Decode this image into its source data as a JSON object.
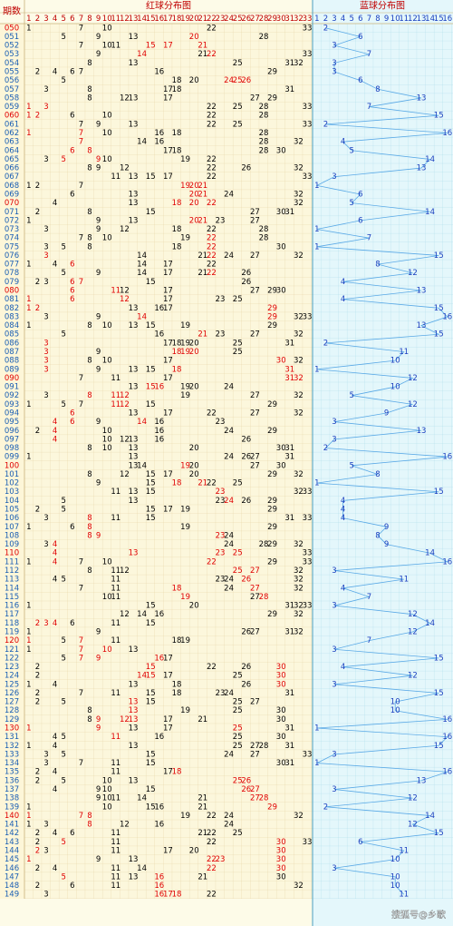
{
  "header": {
    "issue_label": "期数",
    "red_title": "红球分布图",
    "blue_title": "蓝球分布图",
    "red_columns": [
      1,
      2,
      3,
      4,
      5,
      6,
      7,
      8,
      9,
      10,
      11,
      12,
      13,
      14,
      15,
      16,
      17,
      18,
      19,
      20,
      21,
      22,
      23,
      24,
      25,
      26,
      27,
      28,
      29,
      30,
      31,
      32,
      33
    ],
    "blue_columns": [
      1,
      2,
      3,
      4,
      5,
      6,
      7,
      8,
      9,
      10,
      11,
      12,
      13,
      14,
      15,
      16
    ]
  },
  "watermark": "搜狐号@乡歌",
  "rows": [
    {
      "issue": "050",
      "red": [
        1,
        7,
        10,
        22,
        33
      ],
      "hot": [],
      "blue": 2
    },
    {
      "issue": "051",
      "red": [
        5,
        9,
        13,
        20,
        28
      ],
      "hot": [
        20
      ],
      "blue": 6
    },
    {
      "issue": "052",
      "red": [
        7,
        10,
        11,
        15,
        17,
        21
      ],
      "hot": [
        15,
        17,
        21
      ],
      "blue": 3
    },
    {
      "issue": "053",
      "red": [
        9,
        14,
        21,
        22,
        33
      ],
      "hot": [
        14,
        22
      ],
      "blue": 7
    },
    {
      "issue": "054",
      "red": [
        8,
        13,
        25,
        31,
        32
      ],
      "hot": [],
      "blue": 3
    },
    {
      "issue": "055",
      "red": [
        2,
        4,
        6,
        7,
        16,
        29
      ],
      "hot": [],
      "blue": 3
    },
    {
      "issue": "056",
      "red": [
        5,
        18,
        20,
        24,
        25,
        26
      ],
      "hot": [
        24,
        25,
        26
      ],
      "blue": 6
    },
    {
      "issue": "057",
      "red": [
        3,
        8,
        17,
        18,
        31
      ],
      "hot": [],
      "blue": 8
    },
    {
      "issue": "058",
      "red": [
        8,
        12,
        13,
        17,
        27,
        29
      ],
      "hot": [],
      "blue": 13
    },
    {
      "issue": "059",
      "red": [
        1,
        3,
        22,
        25,
        28,
        33
      ],
      "hot": [
        1,
        3
      ],
      "blue": 7
    },
    {
      "issue": "060",
      "red": [
        1,
        2,
        6,
        10,
        22,
        28
      ],
      "hot": [
        1,
        2
      ],
      "blue": 15
    },
    {
      "issue": "061",
      "red": [
        7,
        9,
        13,
        22,
        25,
        33
      ],
      "hot": [],
      "blue": 2
    },
    {
      "issue": "062",
      "red": [
        1,
        7,
        10,
        16,
        18,
        28
      ],
      "hot": [
        1,
        7
      ],
      "blue": 16
    },
    {
      "issue": "063",
      "red": [
        7,
        14,
        16,
        28,
        32
      ],
      "hot": [
        7
      ],
      "blue": 4
    },
    {
      "issue": "064",
      "red": [
        6,
        8,
        17,
        18,
        28,
        30
      ],
      "hot": [
        6,
        8
      ],
      "blue": 5
    },
    {
      "issue": "065",
      "red": [
        3,
        5,
        9,
        10,
        19,
        22
      ],
      "hot": [
        5,
        9
      ],
      "blue": 14
    },
    {
      "issue": "066",
      "red": [
        8,
        9,
        12,
        22,
        26,
        32
      ],
      "hot": [],
      "blue": 13
    },
    {
      "issue": "067",
      "red": [
        11,
        13,
        15,
        17,
        22,
        33
      ],
      "hot": [],
      "blue": 3
    },
    {
      "issue": "068",
      "red": [
        1,
        2,
        7,
        19,
        20,
        21
      ],
      "hot": [
        19,
        20,
        21
      ],
      "blue": 1
    },
    {
      "issue": "069",
      "red": [
        6,
        13,
        20,
        21,
        24,
        32
      ],
      "hot": [
        20,
        21
      ],
      "blue": 6
    },
    {
      "issue": "070",
      "red": [
        4,
        13,
        18,
        20,
        22,
        32
      ],
      "hot": [
        18,
        20,
        22
      ],
      "blue": 5
    },
    {
      "issue": "071",
      "red": [
        2,
        8,
        15,
        27,
        30,
        31
      ],
      "hot": [],
      "blue": 14
    },
    {
      "issue": "072",
      "red": [
        1,
        9,
        13,
        20,
        21,
        23,
        27
      ],
      "hot": [
        20,
        21
      ],
      "blue": 6
    },
    {
      "issue": "073",
      "red": [
        3,
        9,
        12,
        18,
        22,
        28
      ],
      "hot": [],
      "blue": 1
    },
    {
      "issue": "074",
      "red": [
        7,
        8,
        10,
        19,
        22,
        28
      ],
      "hot": [
        22
      ],
      "blue": 7
    },
    {
      "issue": "075",
      "red": [
        3,
        5,
        8,
        18,
        22,
        30
      ],
      "hot": [
        22
      ],
      "blue": 1
    },
    {
      "issue": "076",
      "red": [
        3,
        14,
        21,
        22,
        24,
        27,
        32
      ],
      "hot": [
        3,
        22
      ],
      "blue": 15
    },
    {
      "issue": "077",
      "red": [
        1,
        4,
        6,
        14,
        17,
        22
      ],
      "hot": [
        6
      ],
      "blue": 8
    },
    {
      "issue": "078",
      "red": [
        5,
        9,
        14,
        17,
        21,
        22,
        26
      ],
      "hot": [
        22
      ],
      "blue": 12
    },
    {
      "issue": "079",
      "red": [
        2,
        3,
        6,
        7,
        15,
        26
      ],
      "hot": [
        6,
        7
      ],
      "blue": 4
    },
    {
      "issue": "080",
      "red": [
        6,
        11,
        12,
        17,
        27,
        29,
        30
      ],
      "hot": [
        6,
        11
      ],
      "blue": 13
    },
    {
      "issue": "081",
      "red": [
        1,
        6,
        12,
        17,
        23,
        25
      ],
      "hot": [
        1,
        6,
        12
      ],
      "blue": 4
    },
    {
      "issue": "082",
      "red": [
        1,
        2,
        13,
        16,
        17,
        29
      ],
      "hot": [
        1,
        2,
        29
      ],
      "blue": 15
    },
    {
      "issue": "083",
      "red": [
        3,
        9,
        14,
        29,
        32,
        33
      ],
      "hot": [
        14,
        29
      ],
      "blue": 16
    },
    {
      "issue": "084",
      "red": [
        1,
        8,
        10,
        13,
        15,
        19,
        29
      ],
      "hot": [],
      "blue": 13
    },
    {
      "issue": "085",
      "red": [
        5,
        16,
        21,
        23,
        27,
        32
      ],
      "hot": [
        21
      ],
      "blue": 15
    },
    {
      "issue": "086",
      "red": [
        3,
        17,
        18,
        19,
        20,
        25,
        31
      ],
      "hot": [
        3
      ],
      "blue": 2
    },
    {
      "issue": "087",
      "red": [
        3,
        9,
        18,
        19,
        20,
        25
      ],
      "hot": [
        3,
        18,
        19,
        20
      ],
      "blue": 11
    },
    {
      "issue": "088",
      "red": [
        3,
        8,
        10,
        17,
        30,
        32
      ],
      "hot": [
        3,
        30
      ],
      "blue": 10
    },
    {
      "issue": "089",
      "red": [
        3,
        9,
        13,
        15,
        18,
        31
      ],
      "hot": [
        3,
        18,
        31
      ],
      "blue": 1
    },
    {
      "issue": "090",
      "red": [
        7,
        11,
        17,
        31,
        32
      ],
      "hot": [
        31,
        32
      ],
      "blue": 12
    },
    {
      "issue": "091",
      "red": [
        13,
        15,
        16,
        19,
        20,
        24
      ],
      "hot": [
        15,
        16
      ],
      "blue": 10
    },
    {
      "issue": "092",
      "red": [
        3,
        8,
        11,
        12,
        19,
        27,
        32
      ],
      "hot": [
        8,
        11,
        12
      ],
      "blue": 5
    },
    {
      "issue": "093",
      "red": [
        1,
        5,
        7,
        11,
        12,
        15,
        29
      ],
      "hot": [
        11,
        12
      ],
      "blue": 12
    },
    {
      "issue": "094",
      "red": [
        6,
        13,
        17,
        22,
        27,
        32
      ],
      "hot": [
        6
      ],
      "blue": 9
    },
    {
      "issue": "095",
      "red": [
        4,
        6,
        9,
        14,
        16,
        23
      ],
      "hot": [
        4,
        6,
        14
      ],
      "blue": 3
    },
    {
      "issue": "096",
      "red": [
        2,
        4,
        10,
        16,
        24,
        29
      ],
      "hot": [
        4
      ],
      "blue": 13
    },
    {
      "issue": "097",
      "red": [
        4,
        10,
        12,
        13,
        16,
        26
      ],
      "hot": [
        4
      ],
      "blue": 3
    },
    {
      "issue": "098",
      "red": [
        8,
        10,
        13,
        20,
        30,
        31
      ],
      "hot": [],
      "blue": 2
    },
    {
      "issue": "099",
      "red": [
        1,
        13,
        24,
        26,
        27,
        31
      ],
      "hot": [],
      "blue": 16
    },
    {
      "issue": "100",
      "red": [
        13,
        14,
        19,
        20,
        27,
        30
      ],
      "hot": [
        19
      ],
      "blue": 5
    },
    {
      "issue": "101",
      "red": [
        8,
        12,
        15,
        17,
        20,
        29,
        32
      ],
      "hot": [],
      "blue": 8
    },
    {
      "issue": "102",
      "red": [
        9,
        15,
        18,
        21,
        22,
        25
      ],
      "hot": [
        18,
        21
      ],
      "blue": 1
    },
    {
      "issue": "103",
      "red": [
        11,
        13,
        15,
        23,
        32,
        33
      ],
      "hot": [
        23
      ],
      "blue": 15
    },
    {
      "issue": "104",
      "red": [
        5,
        13,
        23,
        24,
        26,
        29
      ],
      "hot": [
        24
      ],
      "blue": 4
    },
    {
      "issue": "105",
      "red": [
        2,
        5,
        15,
        17,
        19,
        29
      ],
      "hot": [],
      "blue": 4
    },
    {
      "issue": "106",
      "red": [
        3,
        8,
        11,
        15,
        31,
        33
      ],
      "hot": [
        8
      ],
      "blue": 4
    },
    {
      "issue": "107",
      "red": [
        1,
        6,
        8,
        19,
        29
      ],
      "hot": [
        8
      ],
      "blue": 9
    },
    {
      "issue": "108",
      "red": [
        8,
        9,
        23,
        24
      ],
      "hot": [
        8,
        9,
        23
      ],
      "blue": 8
    },
    {
      "issue": "109",
      "red": [
        3,
        4,
        24,
        28,
        29,
        32
      ],
      "hot": [
        4
      ],
      "blue": 9
    },
    {
      "issue": "110",
      "red": [
        4,
        13,
        23,
        25,
        33
      ],
      "hot": [
        4,
        13,
        23,
        25
      ],
      "blue": 14
    },
    {
      "issue": "111",
      "red": [
        1,
        4,
        7,
        10,
        22,
        29,
        33
      ],
      "hot": [
        4,
        22
      ],
      "blue": 16
    },
    {
      "issue": "112",
      "red": [
        8,
        11,
        12,
        25,
        27,
        32
      ],
      "hot": [
        25,
        27
      ],
      "blue": 3
    },
    {
      "issue": "113",
      "red": [
        4,
        5,
        11,
        23,
        24,
        26,
        32
      ],
      "hot": [
        26
      ],
      "blue": 11
    },
    {
      "issue": "114",
      "red": [
        7,
        11,
        18,
        24,
        27,
        32
      ],
      "hot": [
        18,
        27
      ],
      "blue": 4
    },
    {
      "issue": "115",
      "red": [
        10,
        11,
        19,
        27,
        28
      ],
      "hot": [
        19,
        28
      ],
      "blue": 7
    },
    {
      "issue": "116",
      "red": [
        1,
        15,
        20,
        31,
        32,
        33
      ],
      "hot": [],
      "blue": 3
    },
    {
      "issue": "117",
      "red": [
        12,
        14,
        16,
        29,
        32
      ],
      "hot": [],
      "blue": 12
    },
    {
      "issue": "118",
      "red": [
        2,
        3,
        4,
        6,
        11,
        15
      ],
      "hot": [
        2,
        3,
        4
      ],
      "blue": 14
    },
    {
      "issue": "119",
      "red": [
        1,
        9,
        26,
        27,
        31,
        32
      ],
      "hot": [],
      "blue": 12
    },
    {
      "issue": "120",
      "red": [
        1,
        5,
        7,
        11,
        18,
        19
      ],
      "hot": [
        1,
        7
      ],
      "blue": 7
    },
    {
      "issue": "121",
      "red": [
        1,
        7,
        10,
        13
      ],
      "hot": [
        7,
        10
      ],
      "blue": 3
    },
    {
      "issue": "122",
      "red": [
        5,
        7,
        9,
        16,
        17
      ],
      "hot": [
        7,
        9,
        16
      ],
      "blue": 15
    },
    {
      "issue": "123",
      "red": [
        2,
        15,
        22,
        26,
        30
      ],
      "hot": [
        15,
        30
      ],
      "blue": 4
    },
    {
      "issue": "124",
      "red": [
        2,
        14,
        15,
        17,
        25,
        30
      ],
      "hot": [
        14,
        15,
        30
      ],
      "blue": 12
    },
    {
      "issue": "125",
      "red": [
        1,
        4,
        13,
        18,
        26,
        30
      ],
      "hot": [
        30
      ],
      "blue": 3
    },
    {
      "issue": "126",
      "red": [
        2,
        7,
        11,
        15,
        18,
        23,
        24,
        31
      ],
      "hot": [],
      "blue": 15
    },
    {
      "issue": "127",
      "red": [
        2,
        5,
        13,
        15,
        25,
        27
      ],
      "hot": [
        13
      ],
      "blue": 10
    },
    {
      "issue": "128",
      "red": [
        8,
        13,
        19,
        25,
        30
      ],
      "hot": [
        13
      ],
      "blue": 10
    },
    {
      "issue": "129",
      "red": [
        8,
        9,
        12,
        13,
        17,
        21,
        30
      ],
      "hot": [
        9,
        12,
        13
      ],
      "blue": 16
    },
    {
      "issue": "130",
      "red": [
        1,
        9,
        13,
        17,
        25,
        31
      ],
      "hot": [
        1,
        9,
        25
      ],
      "blue": 1
    },
    {
      "issue": "131",
      "red": [
        4,
        5,
        11,
        16,
        25,
        30
      ],
      "hot": [
        11
      ],
      "blue": 16
    },
    {
      "issue": "132",
      "red": [
        1,
        4,
        13,
        25,
        27,
        28,
        31
      ],
      "hot": [],
      "blue": 15
    },
    {
      "issue": "133",
      "red": [
        3,
        5,
        15,
        24,
        27,
        33
      ],
      "hot": [],
      "blue": 3
    },
    {
      "issue": "134",
      "red": [
        3,
        7,
        11,
        15,
        30,
        31
      ],
      "hot": [],
      "blue": 1
    },
    {
      "issue": "135",
      "red": [
        2,
        4,
        11,
        17,
        18
      ],
      "hot": [
        18
      ],
      "blue": 16
    },
    {
      "issue": "136",
      "red": [
        2,
        5,
        10,
        13,
        25,
        26
      ],
      "hot": [
        25,
        26
      ],
      "blue": 13
    },
    {
      "issue": "137",
      "red": [
        4,
        9,
        10,
        15,
        26,
        27
      ],
      "hot": [
        26,
        27
      ],
      "blue": 3
    },
    {
      "issue": "138",
      "red": [
        9,
        10,
        11,
        14,
        21,
        27,
        28
      ],
      "hot": [
        27,
        28
      ],
      "blue": 12
    },
    {
      "issue": "139",
      "red": [
        1,
        10,
        15,
        16,
        21,
        29
      ],
      "hot": [
        29
      ],
      "blue": 2
    },
    {
      "issue": "140",
      "red": [
        1,
        7,
        8,
        19,
        22,
        24,
        32
      ],
      "hot": [
        1,
        7,
        8
      ],
      "blue": 14
    },
    {
      "issue": "141",
      "red": [
        1,
        3,
        8,
        12,
        16,
        24
      ],
      "hot": [
        8
      ],
      "blue": 12
    },
    {
      "issue": "142",
      "red": [
        2,
        4,
        6,
        11,
        21,
        22,
        25
      ],
      "hot": [],
      "blue": 15
    },
    {
      "issue": "143",
      "red": [
        2,
        5,
        11,
        22,
        30,
        33
      ],
      "hot": [
        5,
        30
      ],
      "blue": 6
    },
    {
      "issue": "144",
      "red": [
        2,
        3,
        11,
        17,
        20,
        30
      ],
      "hot": [
        2,
        30
      ],
      "blue": 11
    },
    {
      "issue": "145",
      "red": [
        1,
        9,
        13,
        22,
        23,
        30
      ],
      "hot": [
        1,
        22,
        23,
        30
      ],
      "blue": 10
    },
    {
      "issue": "146",
      "red": [
        2,
        4,
        11,
        14,
        22,
        30
      ],
      "hot": [
        22,
        30
      ],
      "blue": 3
    },
    {
      "issue": "147",
      "red": [
        5,
        11,
        13,
        16,
        21,
        30
      ],
      "hot": [
        5,
        16
      ],
      "blue": 10
    },
    {
      "issue": "148",
      "red": [
        2,
        6,
        11,
        16,
        32
      ],
      "hot": [
        16
      ],
      "blue": 10
    },
    {
      "issue": "149",
      "red": [
        3,
        16,
        17,
        18,
        22
      ],
      "hot": [
        16,
        17,
        18
      ],
      "blue": 11
    }
  ]
}
